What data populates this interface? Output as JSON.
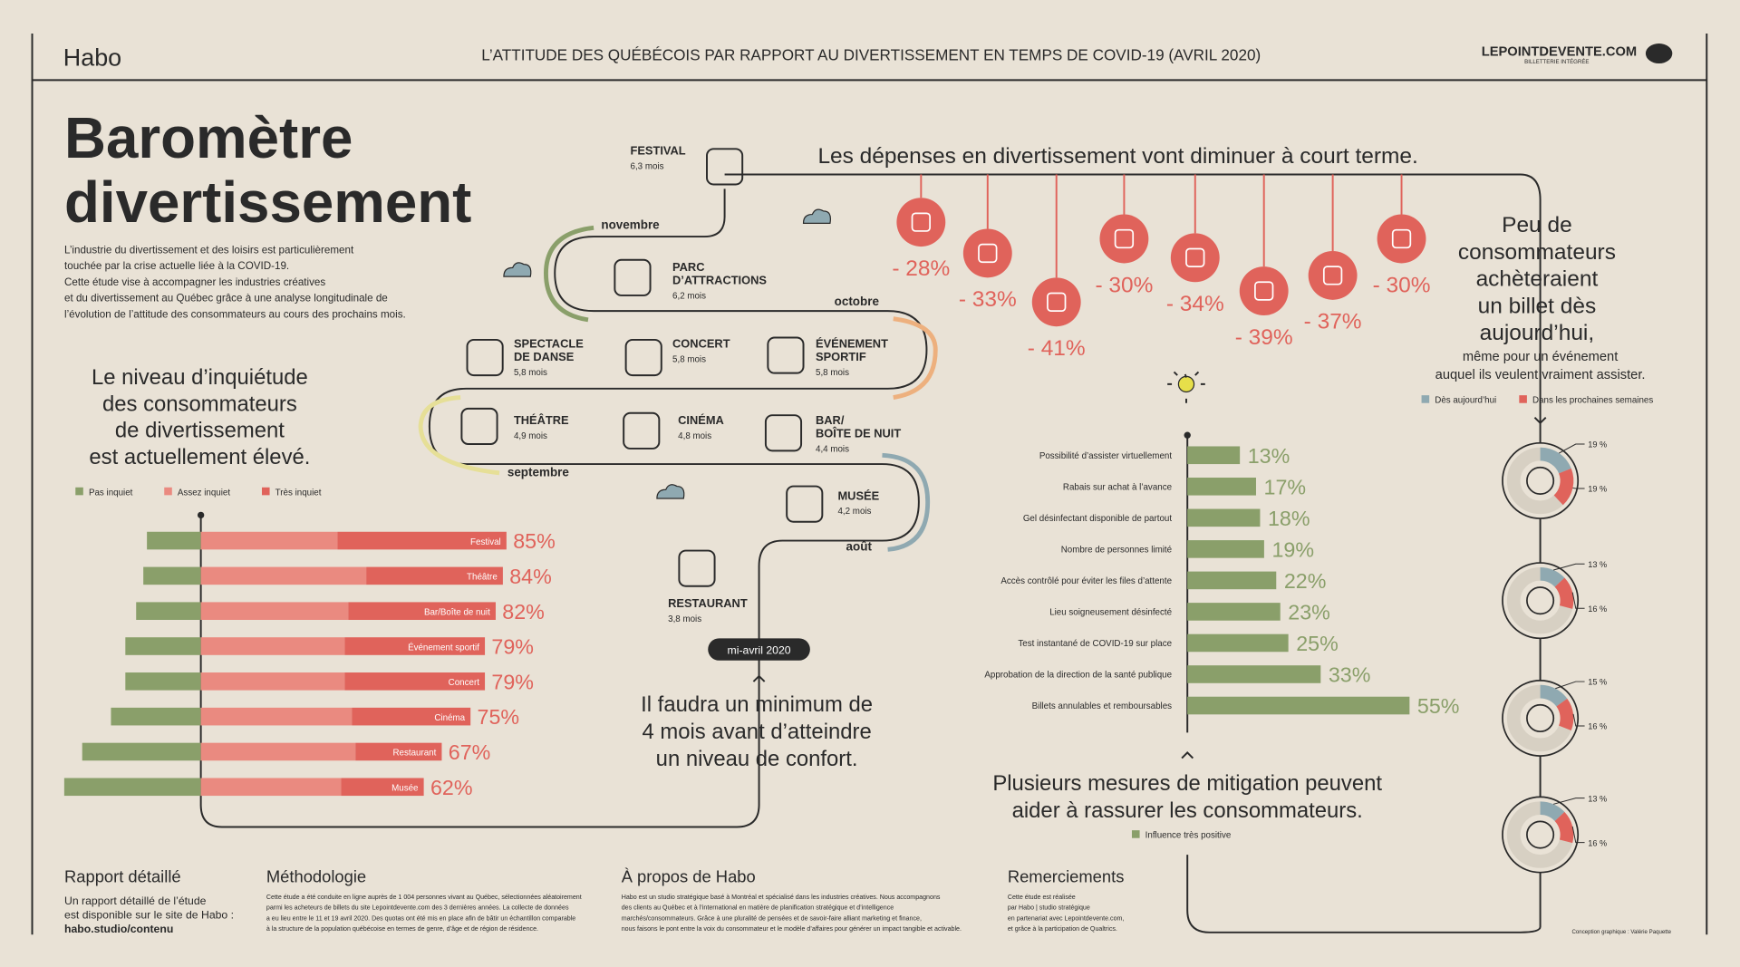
{
  "header": {
    "brand": "Habo",
    "title": "L’ATTITUDE DES QUÉBÉCOIS PAR RAPPORT AU DIVERTISSEMENT EN TEMPS DE COVID-19 (AVRIL 2020)",
    "partner": "LEPOINTDEVENTE.COM",
    "partner_tagline": "BILLETTERIE INTÉGRÉE"
  },
  "intro": {
    "title": [
      "Baromètre",
      "divertissement"
    ],
    "text": [
      "L’industrie du divertissement et des loisirs est particulièrement",
      "touchée par la crise actuelle liée à la COVID-19.",
      "Cette étude vise à accompagner les industries créatives",
      "et du divertissement au Québec grâce à une analyse longitudinale de",
      "l’évolution de l’attitude des consommateurs au cours des prochains mois."
    ]
  },
  "worry": {
    "title": [
      "Le niveau d’inquiétude",
      "des consommateurs",
      "de divertissement",
      "est actuellement élevé."
    ],
    "categories": [
      "Festival",
      "Théâtre",
      "Bar/Boîte de nuit",
      "Événement sportif",
      "Concert",
      "Cinéma",
      "Restaurant",
      "Musée"
    ],
    "series": [
      {
        "name": "Pas inquiet",
        "color": "#8a9f6a",
        "values": [
          15,
          16,
          18,
          21,
          21,
          25,
          33,
          38
        ]
      },
      {
        "name": "Assez inquiet",
        "color": "#ea8a80",
        "values": [
          38,
          46,
          41,
          40,
          40,
          42,
          43,
          39
        ]
      },
      {
        "name": "Très inquiet",
        "color": "#e0635b",
        "values": [
          47,
          38,
          41,
          39,
          39,
          33,
          24,
          23
        ]
      }
    ],
    "totals": [
      85,
      84,
      82,
      79,
      79,
      75,
      67,
      62
    ],
    "total_labels": [
      "85%",
      "84%",
      "82%",
      "79%",
      "79%",
      "75%",
      "67%",
      "62%"
    ]
  },
  "spending": {
    "title": "Les dépenses en divertissement vont diminuer à court terme.",
    "color": "#e0635b",
    "values": [
      -28,
      -33,
      -41,
      -30,
      -34,
      -39,
      -37,
      -30
    ],
    "value_labels": [
      "- 28%",
      "- 33%",
      "- 41%",
      "- 30%",
      "- 34%",
      "- 39%",
      "- 37%",
      "- 30%"
    ]
  },
  "timeline": {
    "items": [
      {
        "label": [
          "FESTIVAL"
        ],
        "duration": "6,3 mois"
      },
      {
        "label": [
          "PARC",
          "D’ATTRACTIONS"
        ],
        "duration": "6,2 mois"
      },
      {
        "label": [
          "SPECTACLE",
          "DE DANSE"
        ],
        "duration": "5,8 mois"
      },
      {
        "label": [
          "CONCERT"
        ],
        "duration": "5,8 mois"
      },
      {
        "label": [
          "ÉVÉNEMENT",
          "SPORTIF"
        ],
        "duration": "5,8 mois"
      },
      {
        "label": [
          "THÉÂTRE"
        ],
        "duration": "4,9 mois"
      },
      {
        "label": [
          "CINÉMA"
        ],
        "duration": "4,8 mois"
      },
      {
        "label": [
          "BAR/",
          "BOÎTE DE NUIT"
        ],
        "duration": "4,4 mois"
      },
      {
        "label": [
          "MUSÉE"
        ],
        "duration": "4,2 mois"
      },
      {
        "label": [
          "RESTAURANT"
        ],
        "duration": "3,8 mois"
      }
    ],
    "months": [
      "novembre",
      "octobre",
      "septembre",
      "août"
    ],
    "start": "mi-avril 2020",
    "note": [
      "Il faudra un minimum de",
      "4 mois avant d’atteindre",
      "un niveau de confort."
    ]
  },
  "mitigation": {
    "title": [
      "Plusieurs mesures de mitigation peuvent",
      "aider à rassurer les consommateurs."
    ],
    "legend": "Influence très positive",
    "color": "#8a9f6a",
    "categories": [
      "Possibilité d’assister virtuellement",
      "Rabais sur achat à l’avance",
      "Gel désinfectant disponible de partout",
      "Nombre de personnes limité",
      "Accès contrôlé pour éviter les files d’attente",
      "Lieu soigneusement désinfecté",
      "Test instantané de COVID-19 sur place",
      "Approbation de la direction de la santé publique",
      "Billets annulables et remboursables"
    ],
    "values": [
      13,
      17,
      18,
      19,
      22,
      23,
      25,
      33,
      55
    ],
    "value_labels": [
      "13%",
      "17%",
      "18%",
      "19%",
      "22%",
      "23%",
      "25%",
      "33%",
      "55%"
    ]
  },
  "purchase": {
    "title": [
      "Peu de",
      "consommateurs",
      "achèteraient",
      "un billet dès",
      "aujourd’hui,"
    ],
    "subtitle": [
      "même pour un événement",
      "auquel ils veulent vraiment assister."
    ],
    "series": [
      {
        "name": "Dès aujourd’hui",
        "color": "#8fa9b1",
        "values": [
          19,
          13,
          15,
          13
        ],
        "value_labels": [
          "19 %",
          "13 %",
          "15 %",
          "13 %"
        ]
      },
      {
        "name": "Dans les prochaines semaines",
        "color": "#e0635b",
        "values": [
          19,
          16,
          16,
          16
        ],
        "value_labels": [
          "19 %",
          "16 %",
          "16 %",
          "16 %"
        ]
      }
    ]
  },
  "footer": {
    "sections": [
      {
        "title": "Rapport détaillé",
        "text": [
          "Un rapport détaillé de l’étude",
          "est disponible sur le site de Habo :",
          "habo.studio/contenu"
        ]
      },
      {
        "title": "Méthodologie",
        "text": [
          "Cette étude a été conduite en ligne auprès de 1 004 personnes vivant au Québec, sélectionnées aléatoirement",
          "parmi les acheteurs de billets du site Lepointdevente.com des 3 dernières années. La collecte de données",
          "a eu lieu entre le 11 et 19 avril 2020. Des quotas ont été mis en place afin de bâtir un échantillon comparable",
          "à la structure de la population québécoise en termes de genre, d’âge et de région de résidence."
        ]
      },
      {
        "title": "À propos de Habo",
        "text": [
          "Habo est un studio stratégique basé à Montréal et spécialisé dans les industries créatives. Nous accompagnons",
          "des clients au Québec et à l’international en matière de planification stratégique et d’intelligence",
          "marchés/consommateurs. Grâce à une pluralité de pensées et de savoir-faire alliant marketing et finance,",
          "nous faisons le pont entre la voix du consommateur et le modèle d’affaires pour générer un impact tangible et activable."
        ]
      },
      {
        "title": "Remerciements",
        "text": [
          "Cette étude est réalisée",
          "par Habo | studio stratégique",
          "en partenariat avec Lepointdevente.com,",
          "et grâce à la participation de Qualtrics."
        ]
      }
    ],
    "credit": "Conception graphique : Valérie Paquette"
  }
}
